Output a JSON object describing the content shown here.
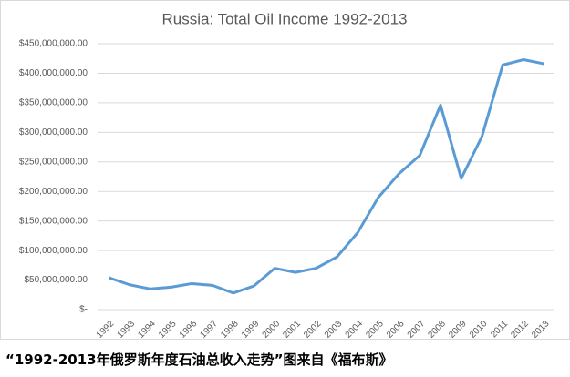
{
  "chart_data": {
    "type": "line",
    "title": "Russia: Total Oil Income 1992-2013",
    "categories": [
      "1992",
      "1993",
      "1994",
      "1995",
      "1996",
      "1997",
      "1998",
      "1999",
      "2000",
      "2001",
      "2002",
      "2003",
      "2004",
      "2005",
      "2006",
      "2007",
      "2008",
      "2009",
      "2010",
      "2011",
      "2012",
      "2013"
    ],
    "values": [
      54000000,
      42000000,
      35000000,
      38000000,
      44000000,
      41000000,
      28000000,
      40000000,
      70000000,
      63000000,
      70000000,
      89000000,
      130000000,
      190000000,
      230000000,
      261000000,
      346000000,
      222000000,
      293000000,
      414000000,
      423000000,
      416000000
    ],
    "color": "#5b9bd5",
    "ylim": [
      0,
      450000000
    ],
    "yticks": [
      {
        "value": 0,
        "label": "$-"
      },
      {
        "value": 50000000,
        "label": "$50,000,000.00"
      },
      {
        "value": 100000000,
        "label": "$100,000,000.00"
      },
      {
        "value": 150000000,
        "label": "$150,000,000.00"
      },
      {
        "value": 200000000,
        "label": "$200,000,000.00"
      },
      {
        "value": 250000000,
        "label": "$250,000,000.00"
      },
      {
        "value": 300000000,
        "label": "$300,000,000.00"
      },
      {
        "value": 350000000,
        "label": "$350,000,000.00"
      },
      {
        "value": 400000000,
        "label": "$400,000,000.00"
      },
      {
        "value": 450000000,
        "label": "$450,000,000.00"
      }
    ],
    "grid": true
  },
  "caption": "“1992-2013年俄罗斯年度石油总收入走势”图来自《福布斯》"
}
